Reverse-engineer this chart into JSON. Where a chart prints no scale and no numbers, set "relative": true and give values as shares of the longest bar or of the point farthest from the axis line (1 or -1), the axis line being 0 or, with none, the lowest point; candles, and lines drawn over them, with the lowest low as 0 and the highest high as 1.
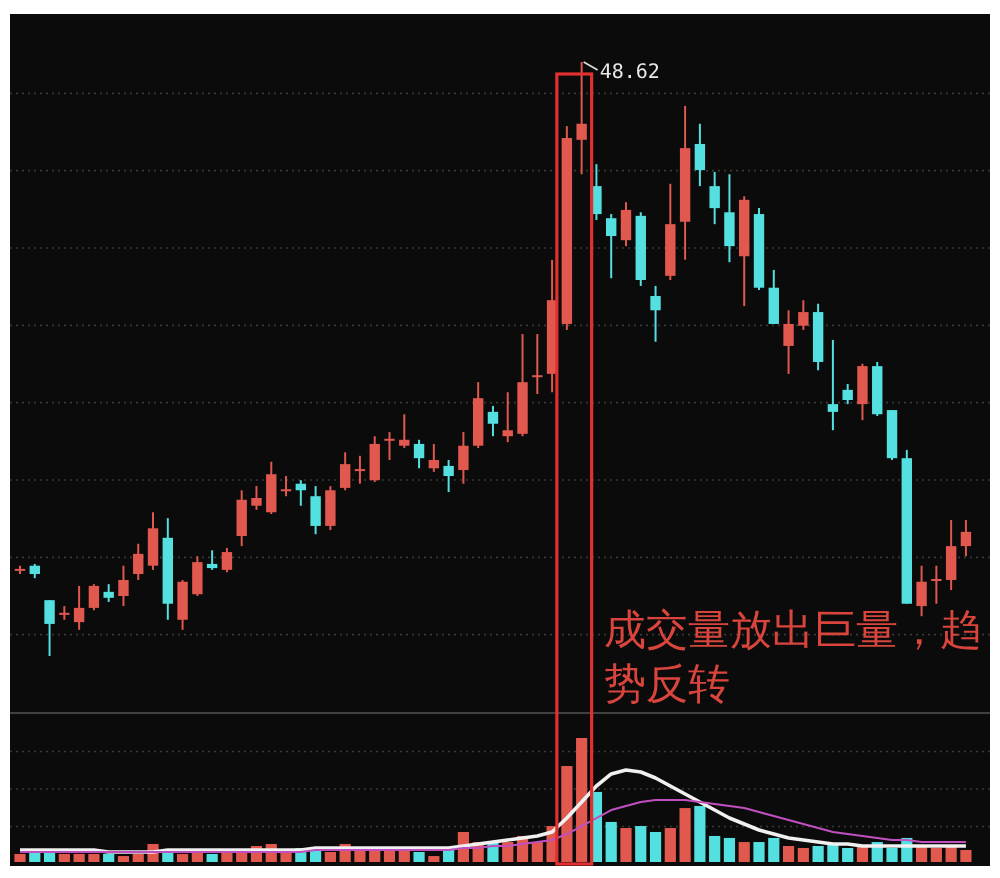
{
  "chart_data": [
    {
      "type": "candlestick",
      "relative": true,
      "grid": true,
      "legend": false,
      "categories": [
        null,
        null,
        null,
        null,
        null,
        null,
        null,
        null,
        null,
        null,
        null,
        null,
        null,
        null,
        null,
        null,
        null,
        null,
        null,
        null,
        null,
        null,
        null,
        null,
        null,
        null,
        null,
        null,
        null,
        null,
        null,
        null,
        null,
        null,
        null,
        null,
        null,
        null,
        null,
        null,
        null,
        null,
        null,
        null,
        null,
        null,
        null,
        null,
        null,
        null,
        null,
        null,
        null,
        null,
        null,
        null,
        null,
        null,
        null,
        null,
        null,
        null,
        null,
        null,
        null
      ],
      "ohlc": [
        [
          0.145,
          0.152,
          0.138,
          0.145
        ],
        [
          0.152,
          0.155,
          0.131,
          0.138
        ],
        [
          0.094,
          0.094,
          0,
          0.054
        ],
        [
          0.071,
          0.084,
          0.061,
          0.071
        ],
        [
          0.057,
          0.118,
          0.044,
          0.081
        ],
        [
          0.081,
          0.121,
          0.077,
          0.118
        ],
        [
          0.108,
          0.121,
          0.091,
          0.098
        ],
        [
          0.101,
          0.152,
          0.084,
          0.128
        ],
        [
          0.138,
          0.189,
          0.128,
          0.172
        ],
        [
          0.152,
          0.242,
          0.145,
          0.215
        ],
        [
          0.199,
          0.232,
          0.061,
          0.088
        ],
        [
          0.061,
          0.128,
          0.044,
          0.125
        ],
        [
          0.104,
          0.168,
          0.101,
          0.158
        ],
        [
          0.155,
          0.178,
          0.145,
          0.148
        ],
        [
          0.145,
          0.182,
          0.141,
          0.175
        ],
        [
          0.202,
          0.279,
          0.185,
          0.263
        ],
        [
          0.253,
          0.286,
          0.246,
          0.266
        ],
        [
          0.242,
          0.327,
          0.239,
          0.306
        ],
        [
          0.279,
          0.303,
          0.269,
          0.279
        ],
        [
          0.29,
          0.296,
          0.253,
          0.279
        ],
        [
          0.269,
          0.286,
          0.205,
          0.219
        ],
        [
          0.219,
          0.286,
          0.212,
          0.279
        ],
        [
          0.283,
          0.343,
          0.279,
          0.323
        ],
        [
          0.313,
          0.337,
          0.29,
          0.313
        ],
        [
          0.296,
          0.37,
          0.293,
          0.357
        ],
        [
          0.364,
          0.377,
          0.33,
          0.364
        ],
        [
          0.354,
          0.407,
          0.35,
          0.364
        ],
        [
          0.357,
          0.364,
          0.316,
          0.333
        ],
        [
          0.316,
          0.357,
          0.31,
          0.33
        ],
        [
          0.32,
          0.33,
          0.276,
          0.303
        ],
        [
          0.313,
          0.377,
          0.29,
          0.354
        ],
        [
          0.354,
          0.461,
          0.35,
          0.434
        ],
        [
          0.411,
          0.421,
          0.37,
          0.391
        ],
        [
          0.37,
          0.444,
          0.36,
          0.38
        ],
        [
          0.374,
          0.542,
          0.37,
          0.461
        ],
        [
          0.471,
          0.542,
          0.441,
          0.471
        ],
        [
          0.475,
          0.667,
          0.444,
          0.599
        ],
        [
          0.559,
          0.892,
          0.549,
          0.872
        ],
        [
          0.869,
          1,
          0.811,
          0.896
        ],
        [
          0.791,
          0.828,
          0.734,
          0.744
        ],
        [
          0.737,
          0.744,
          0.636,
          0.707
        ],
        [
          0.7,
          0.764,
          0.69,
          0.751
        ],
        [
          0.741,
          0.747,
          0.623,
          0.633
        ],
        [
          0.606,
          0.623,
          0.529,
          0.582
        ],
        [
          0.64,
          0.795,
          0.633,
          0.727
        ],
        [
          0.731,
          0.926,
          0.667,
          0.855
        ],
        [
          0.862,
          0.896,
          0.791,
          0.818
        ],
        [
          0.791,
          0.815,
          0.727,
          0.754
        ],
        [
          0.747,
          0.811,
          0.663,
          0.69
        ],
        [
          0.673,
          0.774,
          0.589,
          0.768
        ],
        [
          0.744,
          0.754,
          0.616,
          0.62
        ],
        [
          0.62,
          0.65,
          0.559,
          0.559
        ],
        [
          0.522,
          0.582,
          0.475,
          0.559
        ],
        [
          0.556,
          0.599,
          0.549,
          0.579
        ],
        [
          0.579,
          0.593,
          0.481,
          0.495
        ],
        [
          0.424,
          0.532,
          0.38,
          0.411
        ],
        [
          0.448,
          0.458,
          0.424,
          0.431
        ],
        [
          0.424,
          0.492,
          0.397,
          0.488
        ],
        [
          0.488,
          0.495,
          0.404,
          0.407
        ],
        [
          0.414,
          0.414,
          0.33,
          0.333
        ],
        [
          0.333,
          0.347,
          0.088,
          0.088
        ],
        [
          0.084,
          0.152,
          0.067,
          0.125
        ],
        [
          0.128,
          0.152,
          0.088,
          0.128
        ],
        [
          0.128,
          0.229,
          0.111,
          0.185
        ],
        [
          0.185,
          0.229,
          0.168,
          0.209
        ]
      ],
      "annotations": [
        "48.62",
        "成交量放出巨量，趋势反转"
      ]
    },
    {
      "type": "bar",
      "relative": true,
      "grid": true,
      "legend": false,
      "categories": [
        null,
        null,
        null,
        null,
        null,
        null,
        null,
        null,
        null,
        null,
        null,
        null,
        null,
        null,
        null,
        null,
        null,
        null,
        null,
        null,
        null,
        null,
        null,
        null,
        null,
        null,
        null,
        null,
        null,
        null,
        null,
        null,
        null,
        null,
        null,
        null,
        null,
        null,
        null,
        null,
        null,
        null,
        null,
        null,
        null,
        null,
        null,
        null,
        null,
        null,
        null,
        null,
        null,
        null,
        null,
        null,
        null,
        null,
        null,
        null,
        null,
        null,
        null,
        null,
        null
      ],
      "series": [
        {
          "type": "bar",
          "values": [
            0.065,
            0.081,
            0.081,
            0.065,
            0.065,
            0.065,
            0.065,
            0.048,
            0.065,
            0.145,
            0.097,
            0.065,
            0.081,
            0.065,
            0.081,
            0.097,
            0.129,
            0.145,
            0.081,
            0.113,
            0.113,
            0.081,
            0.145,
            0.097,
            0.097,
            0.097,
            0.097,
            0.081,
            0.048,
            0.097,
            0.242,
            0.161,
            0.161,
            0.161,
            0.21,
            0.161,
            0.29,
            0.774,
            1,
            0.565,
            0.323,
            0.274,
            0.29,
            0.242,
            0.274,
            0.435,
            0.452,
            0.21,
            0.194,
            0.161,
            0.161,
            0.194,
            0.129,
            0.113,
            0.129,
            0.145,
            0.113,
            0.129,
            0.161,
            0.113,
            0.194,
            0.129,
            0.113,
            0.129,
            0.097
          ],
          "colors": [
            "#e0584e",
            "#54e0e0",
            "#54e0e0",
            "#e0584e",
            "#e0584e",
            "#e0584e",
            "#54e0e0",
            "#e0584e",
            "#e0584e",
            "#e0584e",
            "#54e0e0",
            "#e0584e",
            "#e0584e",
            "#54e0e0",
            "#e0584e",
            "#e0584e",
            "#e0584e",
            "#e0584e",
            "#e0584e",
            "#54e0e0",
            "#54e0e0",
            "#e0584e",
            "#e0584e",
            "#e0584e",
            "#e0584e",
            "#e0584e",
            "#e0584e",
            "#54e0e0",
            "#e0584e",
            "#54e0e0",
            "#e0584e",
            "#e0584e",
            "#54e0e0",
            "#e0584e",
            "#e0584e",
            "#e0584e",
            "#e0584e",
            "#e0584e",
            "#e0584e",
            "#54e0e0",
            "#54e0e0",
            "#e0584e",
            "#54e0e0",
            "#54e0e0",
            "#e0584e",
            "#e0584e",
            "#54e0e0",
            "#54e0e0",
            "#54e0e0",
            "#e0584e",
            "#54e0e0",
            "#54e0e0",
            "#e0584e",
            "#e0584e",
            "#54e0e0",
            "#54e0e0",
            "#54e0e0",
            "#e0584e",
            "#54e0e0",
            "#54e0e0",
            "#54e0e0",
            "#e0584e",
            "#e0584e",
            "#e0584e",
            "#e0584e"
          ]
        }
      ]
    },
    {
      "type": "line",
      "relative": true,
      "legend": false,
      "categories": [
        null,
        null,
        null,
        null,
        null,
        null,
        null,
        null,
        null,
        null,
        null,
        null,
        null,
        null,
        null,
        null,
        null,
        null,
        null,
        null,
        null,
        null,
        null,
        null,
        null,
        null,
        null,
        null,
        null,
        null,
        null,
        null,
        null,
        null,
        null,
        null,
        null,
        null,
        null,
        null,
        null,
        null,
        null,
        null,
        null,
        null,
        null,
        null,
        null,
        null,
        null,
        null,
        null,
        null,
        null,
        null,
        null,
        null,
        null,
        null,
        null,
        null,
        null,
        null,
        null
      ],
      "series": [
        {
          "color": "#f0f0f0",
          "values": [
            0.13,
            0.13,
            0.13,
            0.13,
            0.13,
            0.13,
            0.109,
            0.109,
            0.109,
            0.109,
            0.13,
            0.13,
            0.13,
            0.13,
            0.13,
            0.13,
            0.13,
            0.13,
            0.13,
            0.13,
            0.152,
            0.152,
            0.152,
            0.152,
            0.152,
            0.152,
            0.152,
            0.152,
            0.152,
            0.152,
            0.174,
            0.196,
            0.217,
            0.239,
            0.261,
            0.283,
            0.326,
            0.478,
            0.652,
            0.826,
            0.957,
            1,
            0.978,
            0.913,
            0.826,
            0.739,
            0.652,
            0.565,
            0.478,
            0.413,
            0.348,
            0.304,
            0.261,
            0.239,
            0.217,
            0.196,
            0.196,
            0.174,
            0.174,
            0.174,
            0.174,
            0.174,
            0.174,
            0.174,
            0.174
          ]
        },
        {
          "color": "#c050c0",
          "values": [
            0.109,
            0.109,
            0.109,
            0.109,
            0.109,
            0.109,
            0.109,
            0.109,
            0.109,
            0.109,
            0.109,
            0.109,
            0.109,
            0.109,
            0.109,
            0.109,
            0.109,
            0.109,
            0.109,
            0.109,
            0.13,
            0.13,
            0.13,
            0.13,
            0.13,
            0.13,
            0.13,
            0.13,
            0.13,
            0.13,
            0.152,
            0.152,
            0.174,
            0.174,
            0.196,
            0.217,
            0.239,
            0.304,
            0.391,
            0.478,
            0.565,
            0.609,
            0.652,
            0.674,
            0.674,
            0.674,
            0.652,
            0.63,
            0.609,
            0.587,
            0.543,
            0.5,
            0.457,
            0.413,
            0.37,
            0.326,
            0.304,
            0.283,
            0.261,
            0.239,
            0.239,
            0.217,
            0.217,
            0.217,
            0.217
          ]
        }
      ]
    }
  ]
}
